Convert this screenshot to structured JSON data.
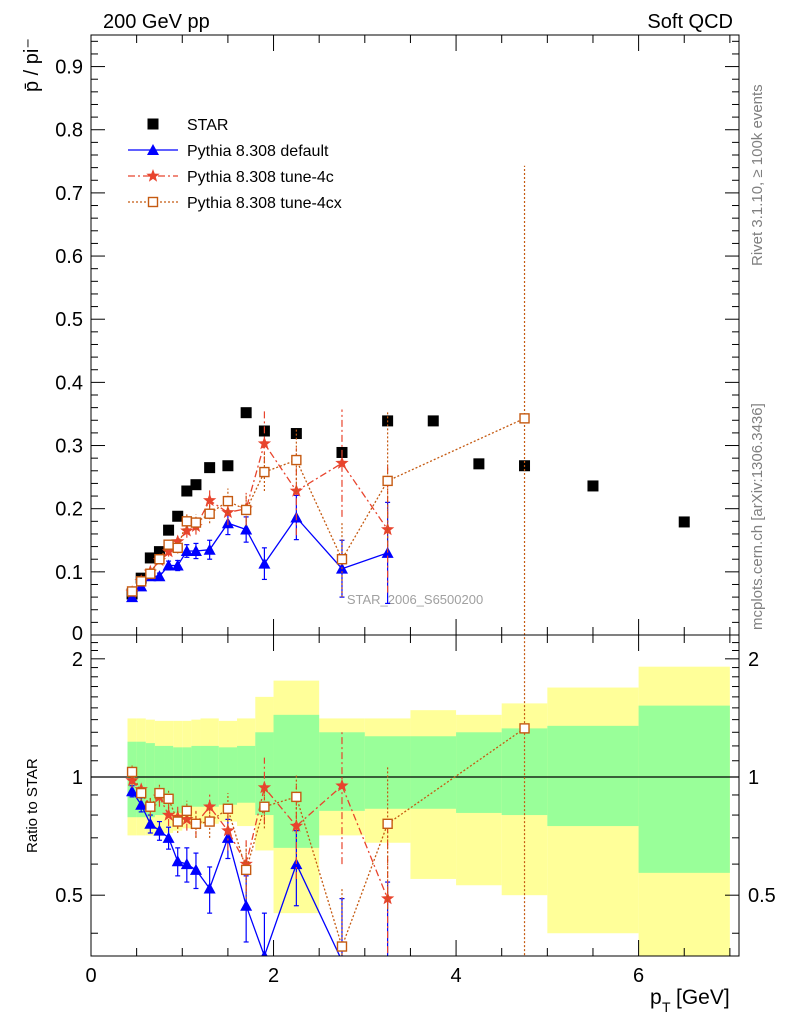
{
  "header": {
    "left": "200 GeV pp",
    "right": "Soft QCD"
  },
  "side_labels": {
    "rivet": "Rivet 3.1.10, ≥ 100k events",
    "mcplots": "mcplots.cern.ch [arXiv:1306.3436]"
  },
  "watermark": "STAR_2006_S6500200",
  "ylabel_main": "p̄ / pi⁻",
  "ylabel_ratio": "Ratio to STAR",
  "xlabel": "p_T [GeV]",
  "colors": {
    "star": "#000000",
    "default": "#0000ff",
    "tune4c": "#e8442d",
    "tune4cx": "#c55a11",
    "band_inner": "#99ff99",
    "band_outer": "#ffff99"
  },
  "chart_data": [
    {
      "type": "scatter",
      "panel": "main",
      "xlim": [
        0,
        7.1
      ],
      "ylim": [
        0,
        0.95
      ],
      "yticks": [
        0.1,
        0.2,
        0.3,
        0.4,
        0.5,
        0.6,
        0.7,
        0.8,
        0.9
      ],
      "ytick_labels": [
        "0.1",
        "0.2",
        "0.3",
        "0.4",
        "0.5",
        "0.6",
        "0.7",
        "0.8",
        "0.9"
      ],
      "y_zero_label": "0",
      "legend": {
        "placement": "top-left",
        "entries": [
          "STAR",
          "Pythia 8.308 default",
          "Pythia 8.308 tune-4c",
          "Pythia 8.308 tune-4cx"
        ]
      },
      "series": [
        {
          "name": "STAR",
          "marker": "square",
          "x": [
            0.45,
            0.55,
            0.65,
            0.75,
            0.85,
            0.95,
            1.05,
            1.15,
            1.3,
            1.5,
            1.7,
            1.9,
            2.25,
            2.75,
            3.25,
            3.75,
            4.25,
            4.75,
            5.5,
            6.5
          ],
          "y": [
            0.065,
            0.09,
            0.122,
            0.132,
            0.166,
            0.188,
            0.228,
            0.238,
            0.265,
            0.268,
            0.352,
            0.323,
            0.319,
            0.289,
            0.339,
            0.339,
            0.271,
            0.268,
            0.236,
            0.179
          ]
        },
        {
          "name": "Pythia 8.308 default",
          "marker": "triangle",
          "x": [
            0.45,
            0.55,
            0.65,
            0.75,
            0.85,
            0.95,
            1.05,
            1.15,
            1.3,
            1.5,
            1.7,
            1.9,
            2.25,
            2.75,
            3.25
          ],
          "y": [
            0.06,
            0.077,
            0.093,
            0.093,
            0.11,
            0.11,
            0.133,
            0.133,
            0.135,
            0.177,
            0.167,
            0.113,
            0.186,
            0.105,
            0.13
          ],
          "err": [
            0.003,
            0.004,
            0.005,
            0.005,
            0.007,
            0.008,
            0.01,
            0.012,
            0.015,
            0.018,
            0.02,
            0.025,
            0.035,
            0.045,
            0.08
          ]
        },
        {
          "name": "Pythia 8.308 tune-4c",
          "marker": "star",
          "x": [
            0.45,
            0.55,
            0.65,
            0.75,
            0.85,
            0.95,
            1.05,
            1.15,
            1.3,
            1.5,
            1.7,
            1.9,
            2.25,
            2.75,
            3.25
          ],
          "y": [
            0.068,
            0.085,
            0.1,
            0.118,
            0.132,
            0.148,
            0.165,
            0.172,
            0.213,
            0.194,
            0.2,
            0.303,
            0.228,
            0.272,
            0.167
          ],
          "err": [
            0.003,
            0.004,
            0.005,
            0.006,
            0.008,
            0.009,
            0.011,
            0.013,
            0.016,
            0.02,
            0.025,
            0.055,
            0.07,
            0.085,
            0.1
          ]
        },
        {
          "name": "Pythia 8.308 tune-4cx",
          "marker": "open-square",
          "x": [
            0.45,
            0.55,
            0.65,
            0.75,
            0.85,
            0.95,
            1.05,
            1.15,
            1.3,
            1.5,
            1.7,
            1.9,
            2.25,
            2.75,
            3.25,
            4.75
          ],
          "y": [
            0.069,
            0.085,
            0.097,
            0.12,
            0.143,
            0.138,
            0.18,
            0.178,
            0.192,
            0.212,
            0.198,
            0.258,
            0.277,
            0.12,
            0.244,
            0.343
          ],
          "err": [
            0.003,
            0.004,
            0.005,
            0.006,
            0.008,
            0.009,
            0.011,
            0.013,
            0.015,
            0.02,
            0.025,
            0.03,
            0.05,
            0.06,
            0.11,
            0.4
          ]
        }
      ]
    },
    {
      "type": "scatter",
      "panel": "ratio",
      "xlim": [
        0,
        7.1
      ],
      "ylim": [
        0.35,
        2.3
      ],
      "log_y": true,
      "yticks": [
        0.5,
        1,
        2
      ],
      "ytick_labels": [
        "0.5",
        "1",
        "2"
      ],
      "xticks": [
        0,
        2,
        4,
        6
      ],
      "xtick_labels": [
        "0",
        "2",
        "4",
        "6"
      ],
      "bands": {
        "bins": [
          [
            0.4,
            0.5
          ],
          [
            0.5,
            0.6
          ],
          [
            0.6,
            0.7
          ],
          [
            0.7,
            0.8
          ],
          [
            0.8,
            0.9
          ],
          [
            0.9,
            1.0
          ],
          [
            1.0,
            1.1
          ],
          [
            1.1,
            1.2
          ],
          [
            1.2,
            1.4
          ],
          [
            1.4,
            1.6
          ],
          [
            1.6,
            1.8
          ],
          [
            1.8,
            2.0
          ],
          [
            2.0,
            2.5
          ],
          [
            2.5,
            3.0
          ],
          [
            3.0,
            3.5
          ],
          [
            3.5,
            4.0
          ],
          [
            4.0,
            4.5
          ],
          [
            4.5,
            5.0
          ],
          [
            5.0,
            6.0
          ],
          [
            6.0,
            7.0
          ]
        ],
        "inner_lo": [
          0.79,
          0.79,
          0.79,
          0.8,
          0.81,
          0.81,
          0.82,
          0.84,
          0.84,
          0.85,
          0.86,
          0.8,
          0.66,
          0.82,
          0.83,
          0.83,
          0.81,
          0.8,
          0.75,
          0.57
        ],
        "inner_hi": [
          1.23,
          1.23,
          1.22,
          1.2,
          1.2,
          1.19,
          1.19,
          1.2,
          1.2,
          1.19,
          1.2,
          1.3,
          1.44,
          1.3,
          1.27,
          1.27,
          1.3,
          1.33,
          1.35,
          1.52
        ],
        "outer_lo": [
          0.71,
          0.71,
          0.71,
          0.72,
          0.72,
          0.73,
          0.74,
          0.75,
          0.76,
          0.77,
          0.75,
          0.65,
          0.45,
          0.71,
          0.68,
          0.55,
          0.53,
          0.5,
          0.4,
          0.3
        ],
        "outer_hi": [
          1.41,
          1.41,
          1.4,
          1.39,
          1.39,
          1.39,
          1.39,
          1.4,
          1.41,
          1.39,
          1.41,
          1.6,
          1.76,
          1.41,
          1.41,
          1.48,
          1.44,
          1.54,
          1.69,
          1.91
        ]
      },
      "series": [
        {
          "name": "Pythia 8.308 default",
          "marker": "triangle",
          "x": [
            0.45,
            0.55,
            0.65,
            0.75,
            0.85,
            0.95,
            1.05,
            1.15,
            1.3,
            1.5,
            1.7,
            1.9,
            2.25,
            2.75,
            3.25
          ],
          "y": [
            0.92,
            0.85,
            0.76,
            0.73,
            0.7,
            0.61,
            0.6,
            0.58,
            0.52,
            0.7,
            0.47,
            0.35,
            0.6,
            0.34,
            0.34
          ],
          "err": [
            0.03,
            0.035,
            0.04,
            0.04,
            0.045,
            0.05,
            0.06,
            0.06,
            0.07,
            0.08,
            0.09,
            0.1,
            0.13,
            0.15,
            0.2
          ]
        },
        {
          "name": "Pythia 8.308 tune-4c",
          "marker": "star",
          "x": [
            0.45,
            0.55,
            0.65,
            0.75,
            0.85,
            0.95,
            1.05,
            1.15,
            1.3,
            1.5,
            1.7,
            1.9,
            2.25,
            2.75,
            3.25
          ],
          "y": [
            0.98,
            0.93,
            0.84,
            0.89,
            0.8,
            0.79,
            0.78,
            0.76,
            0.84,
            0.73,
            0.6,
            0.94,
            0.75,
            0.95,
            0.49
          ],
          "err": [
            0.04,
            0.04,
            0.045,
            0.05,
            0.05,
            0.05,
            0.05,
            0.06,
            0.07,
            0.08,
            0.09,
            0.18,
            0.2,
            0.35,
            0.28
          ]
        },
        {
          "name": "Pythia 8.308 tune-4cx",
          "marker": "open-square",
          "x": [
            0.45,
            0.55,
            0.65,
            0.75,
            0.85,
            0.95,
            1.05,
            1.15,
            1.3,
            1.5,
            1.7,
            1.9,
            2.25,
            2.75,
            3.25,
            4.75
          ],
          "y": [
            1.03,
            0.91,
            0.84,
            0.91,
            0.88,
            0.77,
            0.82,
            0.76,
            0.77,
            0.83,
            0.58,
            0.84,
            0.89,
            0.37,
            0.76,
            1.33
          ],
          "err": [
            0.04,
            0.04,
            0.045,
            0.05,
            0.05,
            0.05,
            0.05,
            0.06,
            0.07,
            0.08,
            0.09,
            0.1,
            0.12,
            0.15,
            0.3,
            1.5
          ]
        }
      ]
    }
  ]
}
